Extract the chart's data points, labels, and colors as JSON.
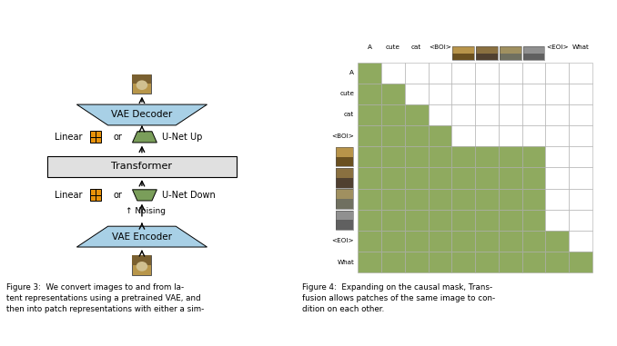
{
  "fig3": {
    "vae_color": "#a8d0e6",
    "transformer_color": "#e0e0e0",
    "orange_color": "#e8920a",
    "green_color": "#7a9e5a",
    "arrow_color": "#000000"
  },
  "fig4": {
    "green_color": "#8faa5f",
    "white_color": "#ffffff",
    "grid_line_color": "#aaaaaa",
    "mask": [
      [
        1,
        0,
        0,
        0,
        0,
        0,
        0,
        0,
        0,
        0
      ],
      [
        1,
        1,
        0,
        0,
        0,
        0,
        0,
        0,
        0,
        0
      ],
      [
        1,
        1,
        1,
        0,
        0,
        0,
        0,
        0,
        0,
        0
      ],
      [
        1,
        1,
        1,
        1,
        0,
        0,
        0,
        0,
        0,
        0
      ],
      [
        1,
        1,
        1,
        1,
        1,
        1,
        1,
        1,
        0,
        0
      ],
      [
        1,
        1,
        1,
        1,
        1,
        1,
        1,
        1,
        0,
        0
      ],
      [
        1,
        1,
        1,
        1,
        1,
        1,
        1,
        1,
        0,
        0
      ],
      [
        1,
        1,
        1,
        1,
        1,
        1,
        1,
        1,
        0,
        0
      ],
      [
        1,
        1,
        1,
        1,
        1,
        1,
        1,
        1,
        1,
        0
      ],
      [
        1,
        1,
        1,
        1,
        1,
        1,
        1,
        1,
        1,
        1
      ]
    ]
  },
  "fig3_caption": "Figure 3:  We convert images to and from la-\ntent representations using a pretrained VAE, and\nthen into patch representations with either a sim-",
  "fig4_caption": "Figure 4:  Expanding on the causal mask, Trans-\nfusion allows patches of the same image to con-\ndition on each other."
}
